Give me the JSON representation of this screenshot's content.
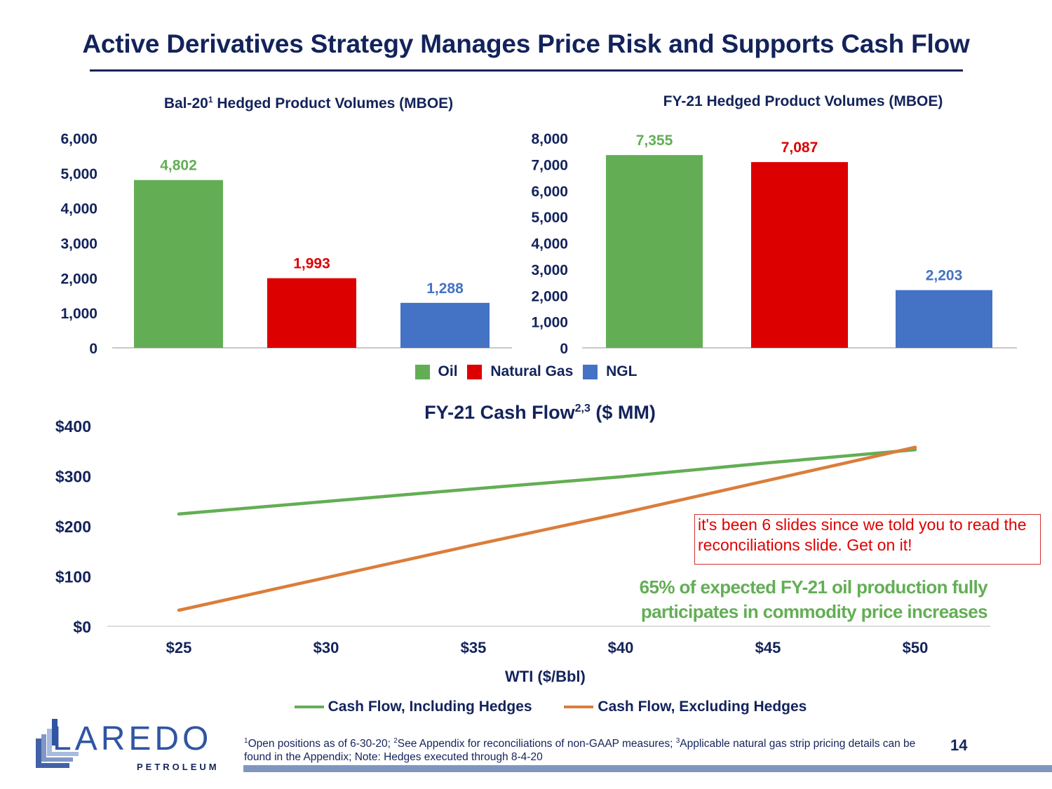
{
  "slide": {
    "title": "Active Derivatives Strategy Manages Price Risk and Supports Cash Flow",
    "page_number": "14",
    "colors": {
      "navy": "#13235B",
      "oil": "#63AE55",
      "natural_gas": "#DD0000",
      "ngl": "#4472C4",
      "incl_hedges": "#63AE55",
      "excl_hedges": "#DB7D3B",
      "note_red": "#E00000"
    }
  },
  "bar_legend": {
    "items": [
      {
        "label": "Oil",
        "color": "#63AE55"
      },
      {
        "label": "Natural Gas",
        "color": "#DD0000"
      },
      {
        "label": "NGL",
        "color": "#4472C4"
      }
    ]
  },
  "annotation": {
    "red_note": "it's been 6 slides since we told you to read the reconciliations slide. Get on it!",
    "green_note_line1": "65% of expected FY-21 oil production fully",
    "green_note_line2": "participates in commodity price increases"
  },
  "footnote": {
    "sup1": "1",
    "text1": "Open positions as of 6-30-20; ",
    "sup2": "2",
    "text2": "See Appendix for reconciliations of non-GAAP measures; ",
    "sup3": "3",
    "text3": "Applicable natural gas strip pricing details can be found in the Appendix; Note: Hedges executed through 8-4-20"
  },
  "logo": {
    "name": "LAREDO",
    "sub": "PETROLEUM"
  },
  "chart_data": [
    {
      "type": "bar",
      "title_main": "Bal-20",
      "title_sup": "1",
      "title_rest": " Hedged Product Volumes (MBOE)",
      "categories": [
        "Oil",
        "Natural Gas",
        "NGL"
      ],
      "values": [
        4802,
        1993,
        1288
      ],
      "value_labels": [
        "4,802",
        "1,993",
        "1,288"
      ],
      "colors": [
        "#63AE55",
        "#DD0000",
        "#4472C4"
      ],
      "ylim": [
        0,
        6000
      ],
      "yticks": [
        0,
        1000,
        2000,
        3000,
        4000,
        5000,
        6000
      ],
      "ytick_labels": [
        "0",
        "1,000",
        "2,000",
        "3,000",
        "4,000",
        "5,000",
        "6,000"
      ],
      "grid": false
    },
    {
      "type": "bar",
      "title_main": "FY-21 Hedged Product Volumes (MBOE)",
      "categories": [
        "Oil",
        "Natural Gas",
        "NGL"
      ],
      "values": [
        7355,
        7087,
        2203
      ],
      "value_labels": [
        "7,355",
        "7,087",
        "2,203"
      ],
      "colors": [
        "#63AE55",
        "#DD0000",
        "#4472C4"
      ],
      "ylim": [
        0,
        8000
      ],
      "yticks": [
        0,
        1000,
        2000,
        3000,
        4000,
        5000,
        6000,
        7000,
        8000
      ],
      "ytick_labels": [
        "0",
        "1,000",
        "2,000",
        "3,000",
        "4,000",
        "5,000",
        "6,000",
        "7,000",
        "8,000"
      ],
      "grid": false
    },
    {
      "type": "line",
      "title_main": "FY-21 Cash Flow",
      "title_sup": "2,3",
      "title_rest": " ($ MM)",
      "xlabel": "WTI ($/Bbl)",
      "ylabel": "",
      "x": [
        25,
        30,
        35,
        40,
        45,
        50
      ],
      "xtick_labels": [
        "$25",
        "$30",
        "$35",
        "$40",
        "$45",
        "$50"
      ],
      "ylim": [
        0,
        400
      ],
      "yticks": [
        0,
        100,
        200,
        300,
        400
      ],
      "ytick_labels": [
        "$0",
        "$100",
        "$200",
        "$300",
        "$400"
      ],
      "legend_position": "bottom",
      "grid": false,
      "series": [
        {
          "name": "Cash Flow, Including Hedges",
          "color": "#63AE55",
          "values": [
            224,
            249,
            274,
            298,
            326,
            352
          ]
        },
        {
          "name": "Cash Flow, Excluding Hedges",
          "color": "#DB7D3B",
          "values": [
            32,
            97,
            162,
            225,
            291,
            357
          ]
        }
      ]
    }
  ]
}
